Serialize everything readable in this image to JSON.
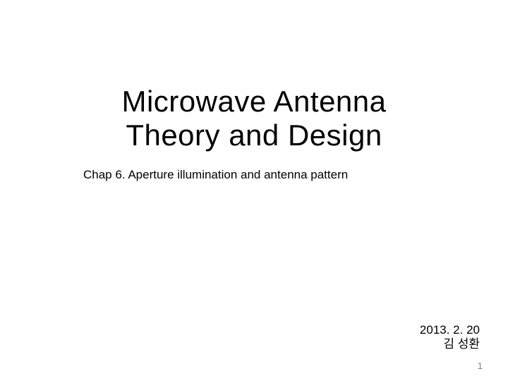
{
  "slide": {
    "title_line1": "Microwave Antenna",
    "title_line2": "Theory and Design",
    "subtitle": "Chap 6. Aperture illumination and antenna pattern",
    "date": "2013. 2. 20",
    "author": "김 성환",
    "page_number": "1",
    "background_color": "#ffffff",
    "text_color": "#000000",
    "page_number_color": "#808080",
    "title_fontsize": 42,
    "subtitle_fontsize": 17,
    "meta_fontsize": 17,
    "pagenum_fontsize": 13
  }
}
